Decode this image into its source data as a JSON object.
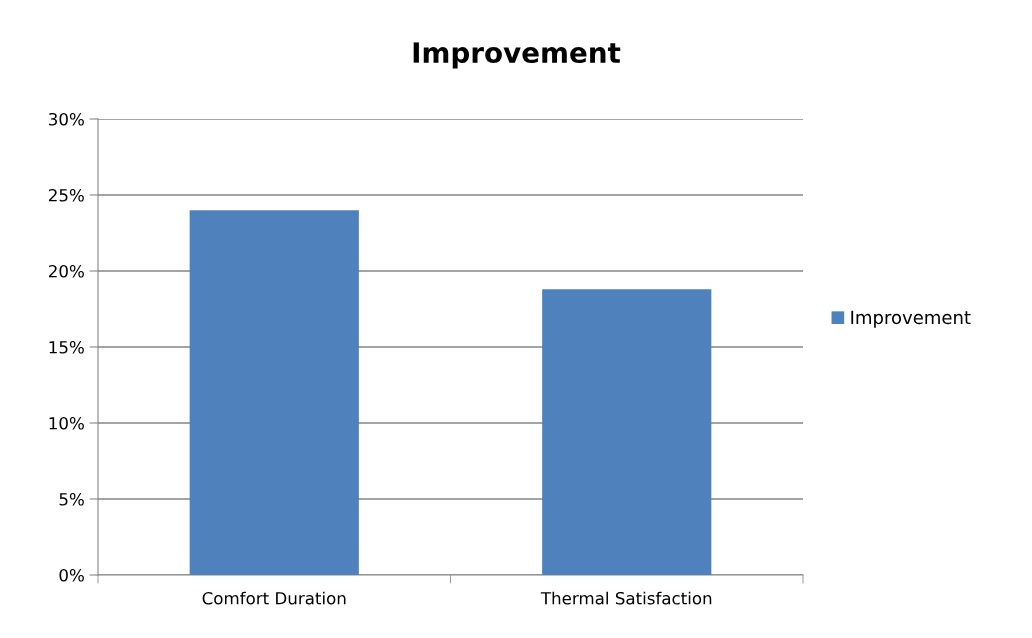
{
  "chart_data": {
    "type": "bar",
    "title": "Improvement",
    "categories": [
      "Comfort Duration",
      "Thermal Satisfaction"
    ],
    "series": [
      {
        "name": "Improvement",
        "color": "#4f81bd",
        "values": [
          24.0,
          18.8
        ]
      }
    ],
    "ylim": [
      0,
      30
    ],
    "yticks": [
      {
        "value": 0,
        "label": "0%"
      },
      {
        "value": 5,
        "label": "5%"
      },
      {
        "value": 10,
        "label": "10%"
      },
      {
        "value": 15,
        "label": "15%"
      },
      {
        "value": 20,
        "label": "20%"
      },
      {
        "value": 25,
        "label": "25%"
      },
      {
        "value": 30,
        "label": "30%"
      }
    ],
    "grid": "y",
    "legend": "right"
  }
}
